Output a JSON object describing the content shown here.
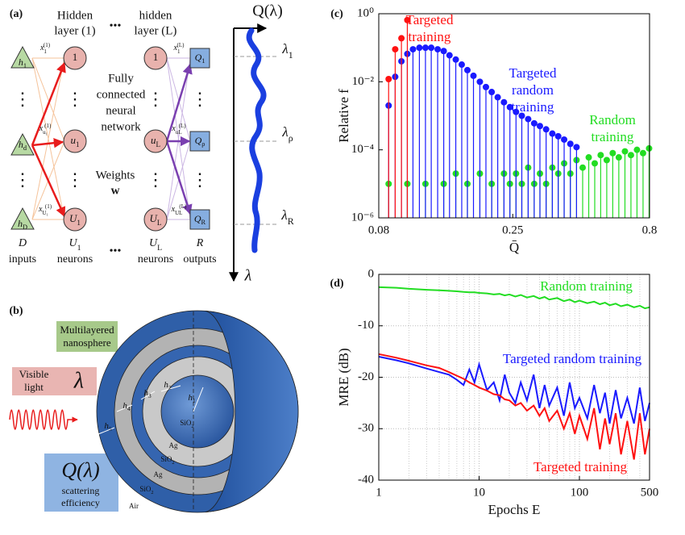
{
  "panel_a": {
    "label": "(a)",
    "hidden_first": [
      "Hidden",
      "layer (1)"
    ],
    "hidden_last": [
      "hidden",
      "layer (L)"
    ],
    "ellipsis": "•••",
    "vdots": "⋮",
    "network": [
      "Fully",
      "connected",
      "neural",
      "network"
    ],
    "weights": [
      "Weights",
      "w"
    ],
    "inputs": [
      {
        "t": "h",
        "sub": "1"
      },
      {
        "t": "h",
        "sub": "d"
      },
      {
        "t": "h",
        "sub": "D"
      }
    ],
    "layer1": [
      {
        "t": "1"
      },
      {
        "t": "u",
        "sub": "1"
      },
      {
        "t": "U",
        "sub": "1"
      }
    ],
    "layerL": [
      {
        "t": "1"
      },
      {
        "t": "u",
        "sub": "L"
      },
      {
        "t": "U",
        "sub": "L"
      }
    ],
    "outputs": [
      {
        "t": "Q",
        "sub": "1"
      },
      {
        "t": "Q",
        "sub": "ρ"
      },
      {
        "t": "Q",
        "sub": "R"
      }
    ],
    "edges1": [
      {
        "t": "x",
        "sub": "1",
        "sup": "(1)"
      },
      {
        "t": "x",
        "sub": "u₁",
        "sup": "(1)"
      },
      {
        "t": "x",
        "sub": "U₁",
        "sup": "(1)"
      }
    ],
    "edgesL": [
      {
        "t": "x",
        "sub": "1",
        "sup": "(L)"
      },
      {
        "t": "x",
        "sub": "uL",
        "sup": "(L)"
      },
      {
        "t": "x",
        "sub": "UL",
        "sup": "(L)"
      }
    ],
    "bottom": [
      {
        "t": "D",
        "line2": "inputs"
      },
      {
        "t": "U",
        "sub": "1",
        "line2": "neurons"
      },
      {
        "t": "U",
        "sub": "L",
        "line2": "neurons"
      },
      {
        "t": "R",
        "line2": "outputs"
      }
    ],
    "curve_title": "Q(λ)",
    "wavelengths": [
      {
        "t": "λ",
        "sub": "1"
      },
      {
        "t": "λ",
        "sub": "ρ"
      },
      {
        "t": "λ",
        "sub": "R"
      }
    ],
    "axis": "λ"
  },
  "panel_b": {
    "label": "(b)",
    "sphere": [
      "Multilayered",
      "nanosphere"
    ],
    "light": [
      "Visible",
      "light"
    ],
    "lambda": "λ",
    "q": "Q(λ)",
    "efficiency": [
      "scattering",
      "efficiency"
    ],
    "thickness": [
      {
        "t": "h",
        "sub": "1"
      },
      {
        "t": "h",
        "sub": "2"
      },
      {
        "t": "h",
        "sub": "3"
      },
      {
        "t": "h",
        "sub": "4"
      },
      {
        "t": "h",
        "sub": "5"
      }
    ],
    "materials": [
      {
        "t": "SiO",
        "sub": "2"
      },
      {
        "t": "Ag"
      },
      {
        "t": "SiO",
        "sub": "2"
      },
      {
        "t": "Ag"
      },
      {
        "t": "SiO",
        "sub": "2"
      },
      {
        "t": "Air"
      }
    ]
  },
  "chart_data": [
    {
      "type": "stem",
      "label": "(c)",
      "xlabel": "Q̄",
      "ylabel": "Relative f",
      "xlog": true,
      "ylog": true,
      "xlim": [
        0.08,
        0.8
      ],
      "ylim": [
        1e-06,
        1
      ],
      "xticks": [
        0.08,
        0.25,
        0.8
      ],
      "yticks": [
        {
          "value": 1e-06,
          "label": "10⁻⁶"
        },
        {
          "value": 0.0001,
          "label": "10⁻⁴"
        },
        {
          "value": 0.01,
          "label": "10⁻²"
        },
        {
          "value": 1,
          "label": "10⁰"
        }
      ],
      "series": [
        {
          "name": "Random training",
          "color": "#22dd22",
          "x": [
            0.087,
            0.102,
            0.119,
            0.139,
            0.154,
            0.17,
            0.189,
            0.209,
            0.232,
            0.244,
            0.257,
            0.27,
            0.285,
            0.3,
            0.315,
            0.332,
            0.35,
            0.368,
            0.387,
            0.408,
            0.43,
            0.453,
            0.477,
            0.502,
            0.528,
            0.556,
            0.585,
            0.616,
            0.649,
            0.683,
            0.719,
            0.757,
            0.797
          ],
          "values": [
            1e-05,
            1e-05,
            1e-05,
            1e-05,
            2e-05,
            1e-05,
            2e-05,
            1e-05,
            2e-05,
            1e-05,
            2e-05,
            1e-05,
            3e-05,
            1e-05,
            2e-05,
            1e-05,
            3e-05,
            2e-05,
            4e-05,
            2e-05,
            5e-05,
            3e-05,
            6e-05,
            4e-05,
            7e-05,
            5e-05,
            8e-05,
            6e-05,
            9e-05,
            7e-05,
            0.0001,
            8e-05,
            0.00011
          ]
        },
        {
          "name": "Targeted random training",
          "color": "#1a1aff",
          "x": [
            0.087,
            0.092,
            0.097,
            0.102,
            0.107,
            0.113,
            0.119,
            0.125,
            0.132,
            0.139,
            0.146,
            0.154,
            0.162,
            0.17,
            0.179,
            0.189,
            0.199,
            0.209,
            0.22,
            0.232,
            0.244,
            0.257,
            0.27,
            0.285,
            0.3,
            0.315,
            0.332,
            0.35,
            0.368,
            0.387,
            0.408,
            0.43
          ],
          "values": [
            0.002,
            0.014,
            0.04,
            0.066,
            0.09,
            0.1,
            0.1,
            0.1,
            0.09,
            0.08,
            0.06,
            0.045,
            0.032,
            0.022,
            0.015,
            0.01,
            0.007,
            0.005,
            0.0035,
            0.0025,
            0.0018,
            0.0013,
            0.001,
            0.0008,
            0.0006,
            0.0005,
            0.0004,
            0.0003,
            0.00025,
            0.0002,
            0.00015,
            0.00012
          ]
        },
        {
          "name": "Targeted training",
          "color": "#ff1111",
          "x": [
            0.087,
            0.092,
            0.097,
            0.102
          ],
          "values": [
            0.012,
            0.09,
            0.19,
            0.65
          ]
        }
      ]
    },
    {
      "type": "line",
      "label": "(d)",
      "xlabel": "Epochs E",
      "ylabel": "MRE (dB)",
      "xlog": true,
      "grid": true,
      "xlim": [
        1,
        500
      ],
      "ylim": [
        -40,
        0
      ],
      "xticks": [
        1,
        10,
        100,
        500
      ],
      "xminor": [
        2,
        3,
        4,
        5,
        6,
        7,
        8,
        9,
        20,
        30,
        40,
        50,
        60,
        70,
        80,
        90,
        200,
        300,
        400
      ],
      "yticks": [
        0,
        -10,
        -20,
        -30,
        -40
      ],
      "x": [
        1,
        1.5,
        2,
        3,
        4,
        5,
        6,
        7,
        8,
        9,
        10,
        12,
        14,
        16,
        18,
        20,
        23,
        26,
        30,
        35,
        40,
        45,
        50,
        60,
        70,
        80,
        90,
        100,
        120,
        140,
        160,
        180,
        200,
        230,
        260,
        300,
        350,
        400,
        450,
        500
      ],
      "series": [
        {
          "name": "Random training",
          "color": "#22dd22",
          "values": [
            -2.5,
            -2.6,
            -2.8,
            -3.0,
            -3.1,
            -3.2,
            -3.3,
            -3.4,
            -3.5,
            -3.5,
            -3.6,
            -3.7,
            -3.9,
            -3.8,
            -4.1,
            -3.9,
            -4.3,
            -4.0,
            -4.5,
            -4.2,
            -4.7,
            -4.4,
            -4.9,
            -4.6,
            -5.2,
            -4.9,
            -5.4,
            -5.1,
            -5.6,
            -5.3,
            -5.8,
            -5.5,
            -6.0,
            -5.7,
            -6.2,
            -5.9,
            -6.4,
            -6.1,
            -6.6,
            -6.4
          ]
        },
        {
          "name": "Targeted random training",
          "color": "#1a1aff",
          "values": [
            -16,
            -16.7,
            -17.3,
            -18.3,
            -19.0,
            -19.5,
            -20.5,
            -21.5,
            -18.5,
            -21,
            -17.5,
            -22.5,
            -21,
            -24.5,
            -19.5,
            -23,
            -25,
            -21,
            -24.5,
            -19.5,
            -26,
            -21.5,
            -25.5,
            -22,
            -27.5,
            -21,
            -26,
            -24,
            -28,
            -21.5,
            -27,
            -23,
            -29,
            -22.5,
            -28,
            -24,
            -29,
            -22,
            -28.5,
            -25
          ]
        },
        {
          "name": "Targeted training",
          "color": "#ff1111",
          "values": [
            -15.5,
            -16.2,
            -16.8,
            -17.7,
            -18.2,
            -19,
            -19.7,
            -20.3,
            -21,
            -21.5,
            -22,
            -22.6,
            -23.3,
            -23.5,
            -24.3,
            -24.5,
            -25.5,
            -25,
            -26.5,
            -25.5,
            -27.5,
            -26,
            -28.5,
            -26.5,
            -30,
            -27,
            -31,
            -27.5,
            -32,
            -26,
            -34,
            -28,
            -33,
            -27,
            -35,
            -28.5,
            -36,
            -27,
            -35,
            -30
          ]
        }
      ]
    }
  ]
}
